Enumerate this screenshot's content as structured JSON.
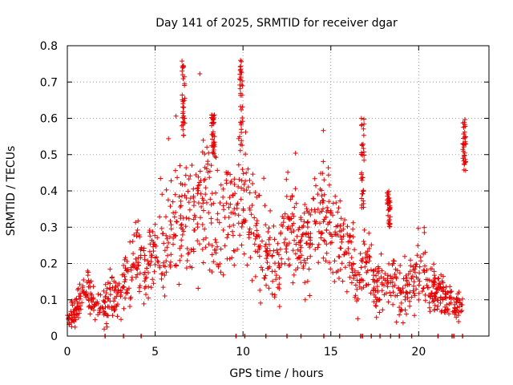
{
  "chart_data": {
    "type": "scatter",
    "title": "Day 141 of 2025, SRMTID for receiver dgar",
    "xlabel": "GPS time / hours",
    "ylabel": "SRMTID / TECUs",
    "xlim": [
      0,
      24
    ],
    "ylim": [
      0,
      0.8
    ],
    "xticks": [
      0,
      5,
      10,
      15,
      20
    ],
    "xtick_labels": [
      "0",
      "5",
      "10",
      "15",
      "20"
    ],
    "yticks": [
      0,
      0.1,
      0.2,
      0.3,
      0.4,
      0.5,
      0.6,
      0.7,
      0.8
    ],
    "ytick_labels": [
      "0",
      "0.1",
      "0.2",
      "0.3",
      "0.4",
      "0.5",
      "0.6",
      "0.7",
      "0.8"
    ],
    "grid": true,
    "marker": "+",
    "marker_color": "#e60000",
    "trend": {
      "x": [
        0,
        0.5,
        1,
        1.5,
        2,
        2.5,
        3,
        3.5,
        4,
        4.5,
        5,
        5.5,
        6,
        6.5,
        7,
        7.5,
        8,
        8.5,
        9,
        9.5,
        10,
        10.5,
        11,
        11.5,
        12,
        12.5,
        13,
        13.5,
        14,
        14.5,
        15,
        15.5,
        16,
        16.5,
        17,
        17.5,
        18,
        18.5,
        19,
        19.5,
        20,
        20.5,
        21,
        21.5,
        22,
        22.5
      ],
      "y": [
        0.05,
        0.07,
        0.13,
        0.09,
        0.07,
        0.1,
        0.12,
        0.17,
        0.2,
        0.2,
        0.25,
        0.25,
        0.3,
        0.35,
        0.35,
        0.32,
        0.4,
        0.3,
        0.35,
        0.3,
        0.4,
        0.3,
        0.25,
        0.22,
        0.2,
        0.3,
        0.28,
        0.25,
        0.3,
        0.35,
        0.3,
        0.25,
        0.25,
        0.15,
        0.2,
        0.12,
        0.15,
        0.15,
        0.12,
        0.15,
        0.18,
        0.14,
        0.12,
        0.1,
        0.08,
        0.07
      ],
      "spread": [
        0.02,
        0.03,
        0.03,
        0.03,
        0.03,
        0.04,
        0.05,
        0.05,
        0.06,
        0.06,
        0.07,
        0.08,
        0.1,
        0.12,
        0.1,
        0.1,
        0.1,
        0.1,
        0.1,
        0.1,
        0.1,
        0.1,
        0.08,
        0.07,
        0.08,
        0.08,
        0.08,
        0.08,
        0.08,
        0.08,
        0.08,
        0.08,
        0.08,
        0.06,
        0.06,
        0.05,
        0.05,
        0.05,
        0.05,
        0.05,
        0.05,
        0.05,
        0.04,
        0.04,
        0.03,
        0.03
      ]
    },
    "spikes": [
      {
        "x": 6.6,
        "y_min": 0.55,
        "y_max": 0.77
      },
      {
        "x": 8.3,
        "y_min": 0.5,
        "y_max": 0.61
      },
      {
        "x": 9.9,
        "y_min": 0.52,
        "y_max": 0.76
      },
      {
        "x": 16.8,
        "y_min": 0.35,
        "y_max": 0.61
      },
      {
        "x": 18.3,
        "y_min": 0.3,
        "y_max": 0.4
      },
      {
        "x": 22.6,
        "y_min": 0.45,
        "y_max": 0.6
      }
    ],
    "zero_points_x": [
      2.15,
      3.2,
      4.2,
      9.6,
      10.1,
      11.3,
      12.5,
      13.3,
      14.6,
      15.5,
      16.7,
      16.8,
      17.3,
      17.8,
      18.4,
      18.9,
      19.6,
      21.1,
      21.9,
      22.0,
      22.5
    ]
  }
}
